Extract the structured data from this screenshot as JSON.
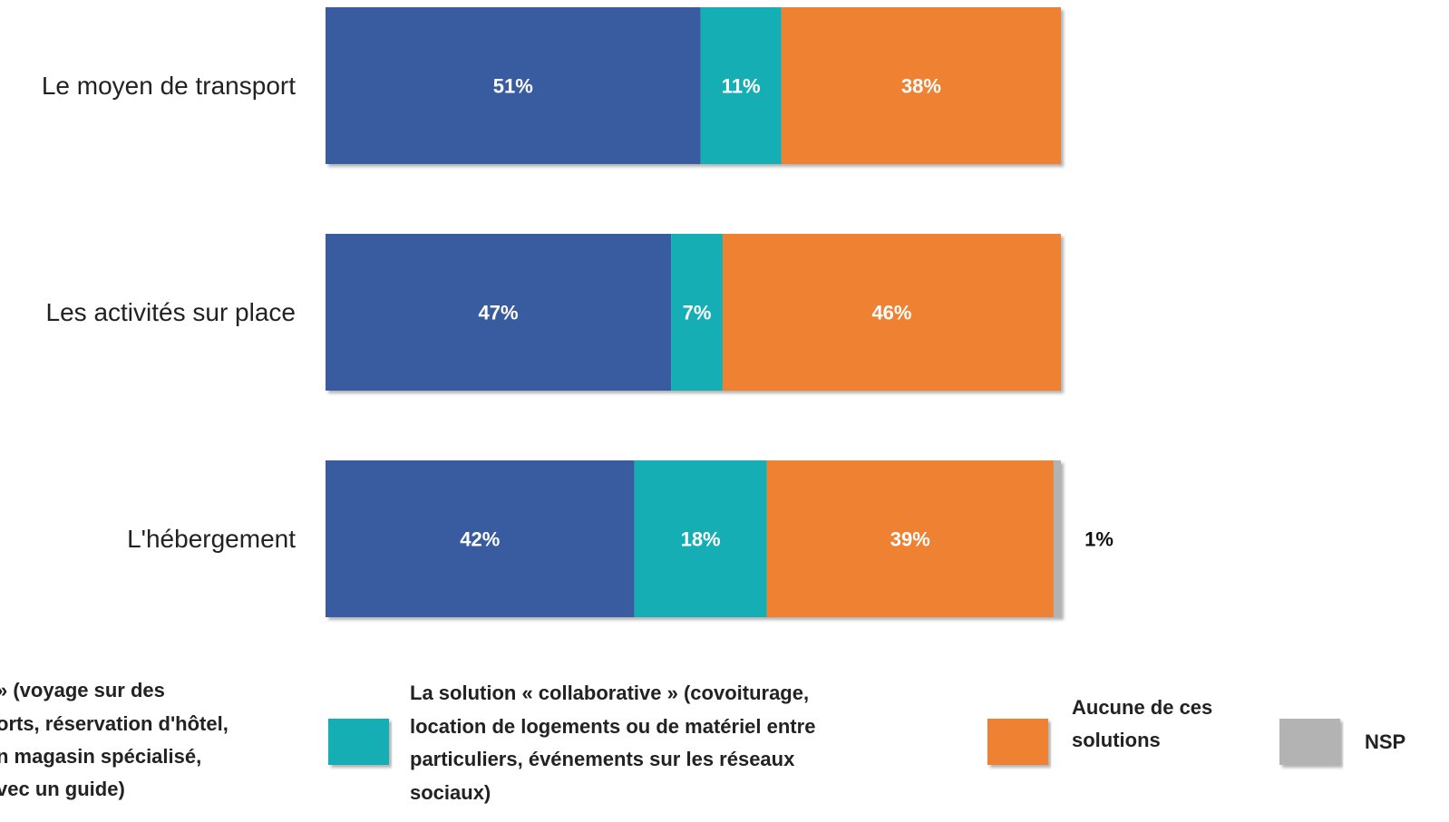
{
  "chart_data": {
    "type": "stacked_barh",
    "categories": [
      "Le moyen de transport",
      "Les activités sur place",
      "L'hébergement"
    ],
    "xlim": [
      0,
      100
    ],
    "series": [
      {
        "name": [
          "» (voyage sur des",
          "orts, réservation d'hôtel,",
          "n magasin spécialisé,",
          "vec un guide)"
        ],
        "color": "#375c9f",
        "values": [
          51,
          47,
          42
        ],
        "value_labels": [
          "51%",
          "47%",
          "42%"
        ]
      },
      {
        "name": [
          "La solution « collaborative » (covoiturage,",
          "location de logements ou de matériel entre",
          "particuliers, événements sur les réseaux",
          "sociaux)"
        ],
        "color": "#17aeb5",
        "values": [
          11,
          7,
          18
        ],
        "value_labels": [
          "11%",
          "7%",
          "18%"
        ]
      },
      {
        "name": [
          "Aucune de ces",
          "solutions"
        ],
        "color": "#ee8133",
        "values": [
          38,
          46,
          39
        ],
        "value_labels": [
          "38%",
          "46%",
          "39%"
        ]
      },
      {
        "name": [
          "NSP"
        ],
        "color": "#b3b3b3",
        "values": [
          null,
          null,
          1
        ],
        "value_labels": [
          null,
          null,
          "1%"
        ]
      }
    ]
  }
}
